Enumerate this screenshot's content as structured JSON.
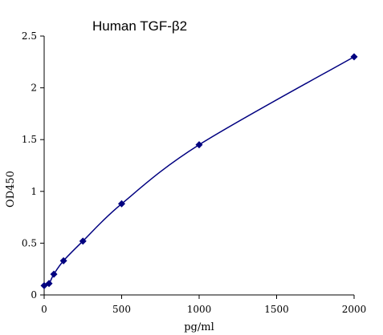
{
  "chart_data": {
    "type": "scatter",
    "title": "Human    TGF-β2",
    "xlabel": "pg/ml",
    "ylabel": "OD450",
    "xlim": [
      0,
      2000
    ],
    "ylim": [
      0,
      2.5
    ],
    "x_ticks": [
      0,
      500,
      1000,
      1500,
      2000
    ],
    "y_ticks": [
      0,
      0.5,
      1,
      1.5,
      2,
      2.5
    ],
    "x_tick_labels": [
      "0",
      "500",
      "1000",
      "1500",
      "2000"
    ],
    "y_tick_labels": [
      "0",
      "0.5",
      "1",
      "1.5",
      "2",
      "2.5"
    ],
    "grid": false,
    "legend": "none",
    "series": [
      {
        "x": [
          0,
          31.25,
          62.5,
          125,
          250,
          500,
          1000,
          2000
        ],
        "y": [
          0.09,
          0.11,
          0.2,
          0.33,
          0.52,
          0.88,
          1.45,
          2.3
        ],
        "marker": "diamond",
        "trendline": "smooth",
        "color": "#000080"
      }
    ]
  }
}
